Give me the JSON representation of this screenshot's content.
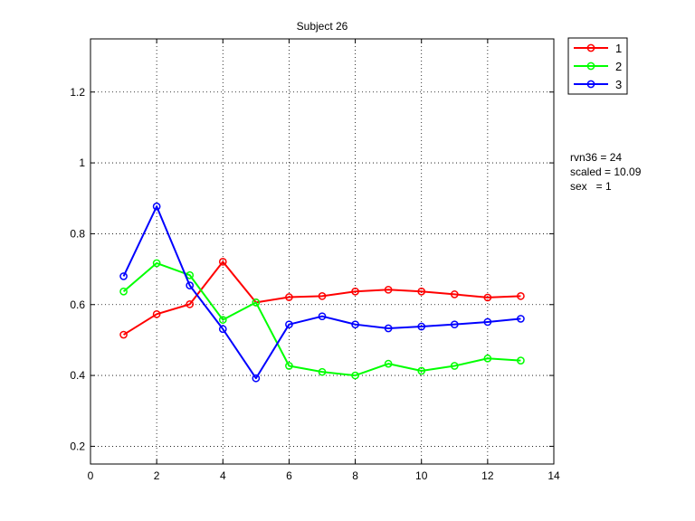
{
  "chart_data": {
    "type": "line",
    "title": "Subject 26",
    "xlabel": "",
    "ylabel": "",
    "xlim": [
      0,
      14
    ],
    "ylim": [
      0.15,
      1.35
    ],
    "xticks": [
      0,
      2,
      4,
      6,
      8,
      10,
      12,
      14
    ],
    "yticks": [
      0.2,
      0.4,
      0.6,
      0.8,
      1,
      1.2
    ],
    "xtick_labels": [
      "0",
      "2",
      "4",
      "6",
      "8",
      "10",
      "12",
      "14"
    ],
    "ytick_labels": [
      "0.2",
      "0.4",
      "0.6",
      "0.8",
      "1",
      "1.2"
    ],
    "grid": true,
    "legend_position": "outside-top-right",
    "x": [
      1,
      2,
      3,
      4,
      5,
      6,
      7,
      8,
      9,
      10,
      11,
      12,
      13
    ],
    "series": [
      {
        "name": "1",
        "color": "#ff0000",
        "marker": "circle",
        "values": [
          0.515,
          0.573,
          0.601,
          0.721,
          0.606,
          0.621,
          0.624,
          0.637,
          0.642,
          0.637,
          0.629,
          0.62,
          0.624
        ]
      },
      {
        "name": "2",
        "color": "#00ff00",
        "marker": "circle",
        "values": [
          0.637,
          0.717,
          0.683,
          0.557,
          0.606,
          0.427,
          0.41,
          0.4,
          0.433,
          0.413,
          0.427,
          0.448,
          0.442
        ]
      },
      {
        "name": "3",
        "color": "#0000ff",
        "marker": "circle",
        "values": [
          0.68,
          0.877,
          0.654,
          0.531,
          0.392,
          0.544,
          0.567,
          0.544,
          0.533,
          0.538,
          0.544,
          0.551,
          0.56
        ]
      }
    ]
  },
  "annotations": {
    "line1": "rvn36 = 24",
    "line2": "scaled = 10.09",
    "line3": "sex   = 1"
  }
}
